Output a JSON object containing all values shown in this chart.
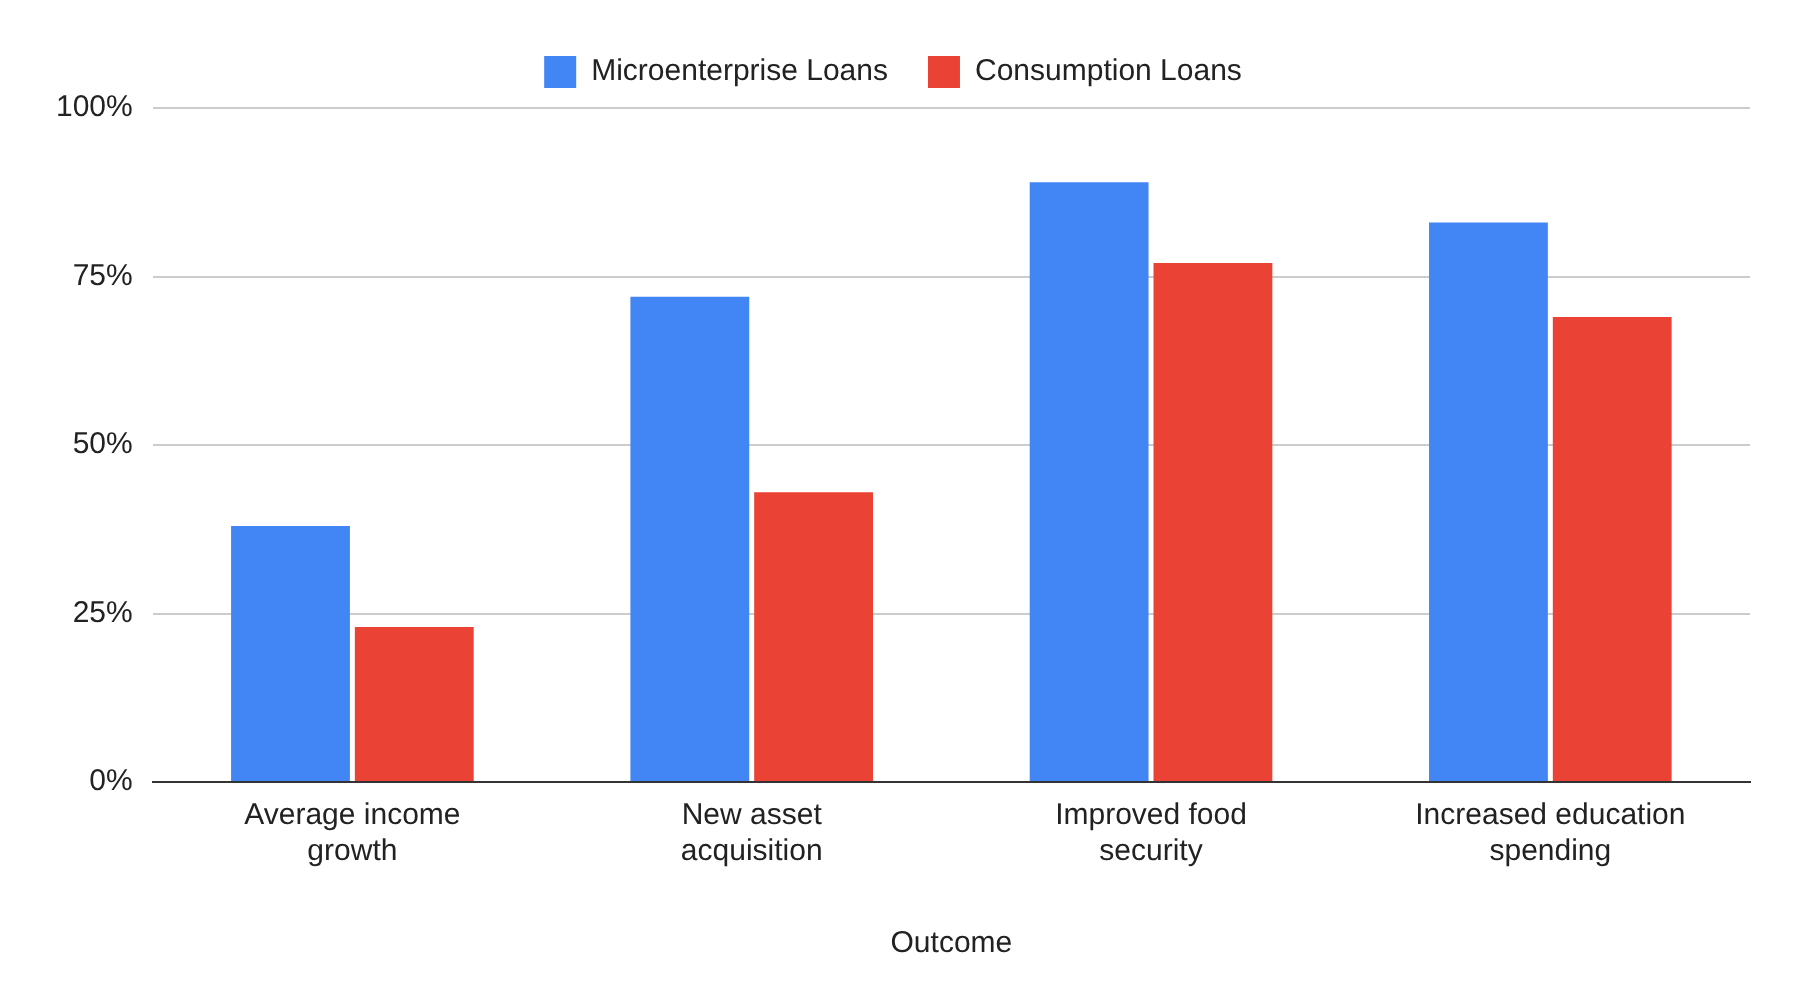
{
  "chart_data": {
    "type": "bar",
    "xlabel": "Outcome",
    "categories": [
      "Average income growth",
      "New asset acquisition",
      "Improved food security",
      "Increased education spending"
    ],
    "series": [
      {
        "name": "Microenterprise Loans",
        "color": "#4285f4",
        "values": [
          38,
          72,
          89,
          83
        ]
      },
      {
        "name": "Consumption Loans",
        "color": "#ea4335",
        "values": [
          23,
          43,
          77,
          69
        ]
      }
    ],
    "ylim": [
      0,
      100
    ],
    "yticks": [
      {
        "value": 0,
        "label": "0%"
      },
      {
        "value": 25,
        "label": "25%"
      },
      {
        "value": 50,
        "label": "50%"
      },
      {
        "value": 75,
        "label": "75%"
      },
      {
        "value": 100,
        "label": "100%"
      }
    ],
    "grid": "y",
    "legend": "top"
  }
}
